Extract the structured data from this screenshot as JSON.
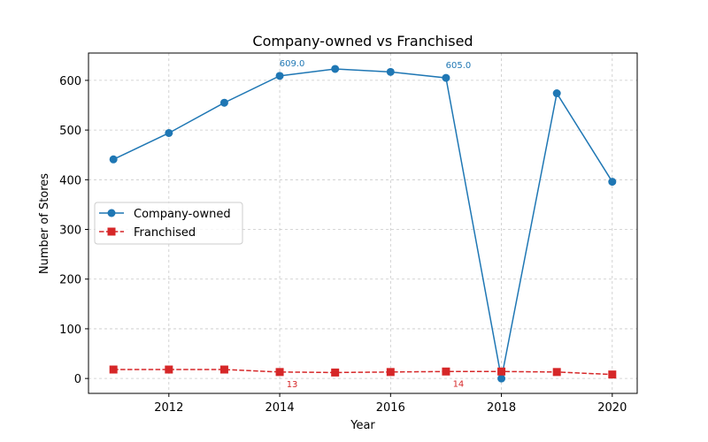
{
  "chart_data": {
    "type": "line",
    "title": "Company-owned vs Franchised",
    "xlabel": "Year",
    "ylabel": "Number of Stores",
    "x": [
      2011,
      2012,
      2013,
      2014,
      2015,
      2016,
      2017,
      2018,
      2019,
      2020
    ],
    "xlim": [
      2010.55,
      2020.45
    ],
    "ylim": [
      -30,
      655
    ],
    "xticks": [
      2012,
      2014,
      2016,
      2018,
      2020
    ],
    "yticks": [
      0,
      100,
      200,
      300,
      400,
      500,
      600
    ],
    "grid": true,
    "legend_position": "center-left",
    "series": [
      {
        "name": "Company-owned",
        "values": [
          441,
          494,
          555,
          609,
          623,
          617,
          605,
          0,
          574,
          396
        ],
        "color": "#1f77b4",
        "marker": "circle",
        "line_style": "solid"
      },
      {
        "name": "Franchised",
        "values": [
          18,
          18,
          18,
          13,
          12,
          13,
          14,
          14,
          13,
          8
        ],
        "color": "#d62728",
        "marker": "square",
        "line_style": "dashed"
      }
    ],
    "annotations": [
      {
        "series": 0,
        "x": 2014,
        "y": 609,
        "text": "609.0",
        "placement": "above"
      },
      {
        "series": 0,
        "x": 2017,
        "y": 605,
        "text": "605.0",
        "placement": "above"
      },
      {
        "series": 1,
        "x": 2014,
        "y": 13,
        "text": "13",
        "placement": "below"
      },
      {
        "series": 1,
        "x": 2017,
        "y": 14,
        "text": "14",
        "placement": "below"
      }
    ]
  }
}
